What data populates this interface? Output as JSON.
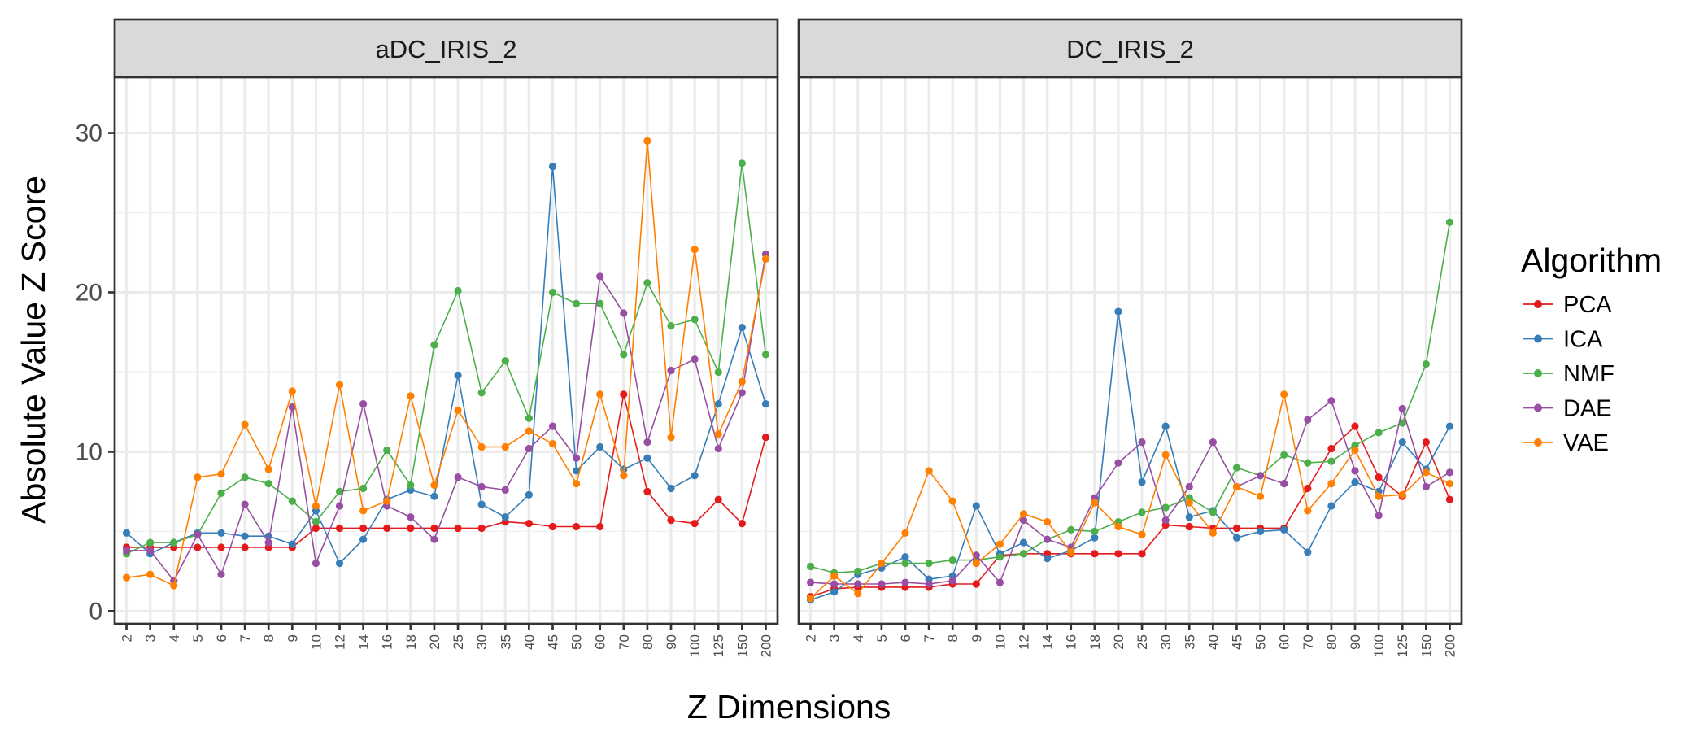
{
  "chart_data": {
    "type": "line",
    "xlabel": "Z Dimensions",
    "ylabel": "Absolute Value Z Score",
    "ylim": [
      -0.8,
      33.5
    ],
    "yticks": [
      0,
      10,
      20,
      30
    ],
    "x": [
      "2",
      "3",
      "4",
      "5",
      "6",
      "7",
      "8",
      "9",
      "10",
      "12",
      "14",
      "16",
      "18",
      "20",
      "25",
      "30",
      "35",
      "40",
      "45",
      "50",
      "60",
      "70",
      "80",
      "90",
      "100",
      "125",
      "150",
      "200"
    ],
    "legend": {
      "title": "Algorithm",
      "position": "right"
    },
    "colors": {
      "PCA": "#e41a1c",
      "ICA": "#377eb8",
      "NMF": "#4daf4a",
      "DAE": "#984ea3",
      "VAE": "#ff7f00"
    },
    "grid": true,
    "panels": [
      {
        "title": "aDC_IRIS_2",
        "series": [
          {
            "name": "PCA",
            "values": [
              4.0,
              4.0,
              4.0,
              4.0,
              4.0,
              4.0,
              4.0,
              4.0,
              5.2,
              5.2,
              5.2,
              5.2,
              5.2,
              5.2,
              5.2,
              5.2,
              5.6,
              5.5,
              5.3,
              5.3,
              5.3,
              13.6,
              7.5,
              5.7,
              5.5,
              7.0,
              5.5,
              10.9
            ]
          },
          {
            "name": "ICA",
            "values": [
              4.9,
              3.6,
              4.3,
              4.9,
              4.9,
              4.7,
              4.7,
              4.2,
              6.3,
              3.0,
              4.5,
              7.0,
              7.6,
              7.2,
              14.8,
              6.7,
              5.9,
              7.3,
              27.9,
              8.8,
              10.3,
              8.9,
              9.6,
              7.7,
              8.5,
              13.0,
              17.8,
              13.0
            ]
          },
          {
            "name": "NMF",
            "values": [
              3.6,
              4.3,
              4.3,
              4.8,
              7.4,
              8.4,
              8.0,
              6.9,
              5.6,
              7.5,
              7.7,
              10.1,
              7.9,
              16.7,
              20.1,
              13.7,
              15.7,
              12.1,
              20.0,
              19.3,
              19.3,
              16.1,
              20.6,
              17.9,
              18.3,
              15.0,
              28.1,
              16.1
            ]
          },
          {
            "name": "DAE",
            "values": [
              3.8,
              3.8,
              1.9,
              4.8,
              2.3,
              6.7,
              4.3,
              12.8,
              3.0,
              6.6,
              13.0,
              6.6,
              5.9,
              4.5,
              8.4,
              7.8,
              7.6,
              10.2,
              11.6,
              9.6,
              21.0,
              18.7,
              10.6,
              15.1,
              15.8,
              10.2,
              13.7,
              22.4
            ]
          },
          {
            "name": "VAE",
            "values": [
              2.1,
              2.3,
              1.6,
              8.4,
              8.6,
              11.7,
              8.9,
              13.8,
              6.6,
              14.2,
              6.3,
              6.9,
              13.5,
              7.9,
              12.6,
              10.3,
              10.3,
              11.3,
              10.5,
              8.0,
              13.6,
              8.5,
              29.5,
              10.9,
              22.7,
              11.1,
              14.4,
              22.1
            ]
          }
        ]
      },
      {
        "title": "DC_IRIS_2",
        "series": [
          {
            "name": "PCA",
            "values": [
              0.9,
              1.4,
              1.5,
              1.5,
              1.5,
              1.5,
              1.7,
              1.7,
              3.5,
              3.6,
              3.6,
              3.6,
              3.6,
              3.6,
              3.6,
              5.4,
              5.3,
              5.2,
              5.2,
              5.2,
              5.2,
              7.7,
              10.2,
              11.6,
              8.4,
              7.2,
              10.6,
              7.0
            ]
          },
          {
            "name": "ICA",
            "values": [
              0.7,
              1.2,
              2.3,
              2.7,
              3.4,
              2.0,
              2.2,
              6.6,
              3.6,
              4.3,
              3.3,
              3.8,
              4.6,
              18.8,
              8.1,
              11.6,
              5.9,
              6.3,
              4.6,
              5.0,
              5.1,
              3.7,
              6.6,
              8.1,
              7.5,
              10.6,
              8.9,
              11.6
            ]
          },
          {
            "name": "NMF",
            "values": [
              2.8,
              2.4,
              2.5,
              3.0,
              3.0,
              3.0,
              3.2,
              3.2,
              3.4,
              3.6,
              4.5,
              5.1,
              5.0,
              5.6,
              6.2,
              6.5,
              7.1,
              6.2,
              9.0,
              8.5,
              9.8,
              9.3,
              9.4,
              10.4,
              11.2,
              11.8,
              15.5,
              24.4
            ]
          },
          {
            "name": "DAE",
            "values": [
              1.8,
              1.7,
              1.7,
              1.7,
              1.8,
              1.7,
              1.9,
              3.5,
              1.8,
              5.7,
              4.5,
              4.0,
              7.1,
              9.3,
              10.6,
              5.7,
              7.8,
              10.6,
              7.8,
              8.5,
              8.0,
              12.0,
              13.2,
              8.8,
              6.0,
              12.7,
              7.8,
              8.7
            ]
          },
          {
            "name": "VAE",
            "values": [
              0.8,
              2.2,
              1.1,
              3.0,
              4.9,
              8.8,
              6.9,
              3.0,
              4.2,
              6.1,
              5.6,
              3.7,
              6.8,
              5.3,
              4.8,
              9.8,
              6.8,
              4.9,
              7.8,
              7.2,
              13.6,
              6.3,
              8.0,
              10.1,
              7.2,
              7.3,
              8.7,
              8.0
            ]
          }
        ]
      }
    ]
  }
}
